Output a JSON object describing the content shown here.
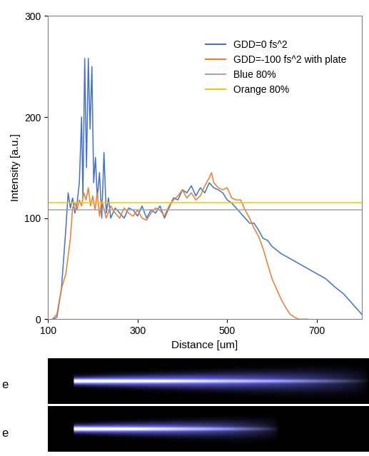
{
  "chart_data": {
    "type": "line",
    "x_label": "Distance [um]",
    "y_label": "Intensity [a.u.]",
    "xlim": [
      100,
      800
    ],
    "xticks": [
      100,
      300,
      500,
      700
    ],
    "ylim": [
      0,
      300
    ],
    "yticks": [
      0,
      100,
      200,
      300
    ],
    "grid": false,
    "legend": "upper right",
    "annotations": [
      "e",
      "e"
    ],
    "series": [
      {
        "name": "GDD=0 fs^2",
        "color": "#4472c4",
        "type": "line",
        "x": [
          110,
          120,
          130,
          140,
          145,
          150,
          155,
          160,
          165,
          170,
          175,
          178,
          182,
          186,
          190,
          194,
          198,
          202,
          206,
          210,
          215,
          220,
          225,
          230,
          235,
          240,
          250,
          260,
          270,
          280,
          290,
          300,
          310,
          320,
          330,
          340,
          350,
          360,
          370,
          380,
          390,
          400,
          410,
          420,
          430,
          440,
          450,
          460,
          470,
          480,
          490,
          500,
          510,
          520,
          530,
          540,
          550,
          560,
          570,
          580,
          590,
          600,
          620,
          640,
          660,
          680,
          700,
          720,
          740,
          760,
          780,
          800
        ],
        "values": [
          0,
          2,
          30,
          90,
          125,
          110,
          120,
          105,
          115,
          135,
          200,
          120,
          258,
          150,
          258,
          188,
          250,
          135,
          160,
          120,
          145,
          100,
          165,
          105,
          120,
          100,
          110,
          105,
          100,
          110,
          108,
          102,
          112,
          100,
          108,
          105,
          112,
          100,
          110,
          120,
          118,
          128,
          125,
          132,
          122,
          130,
          125,
          135,
          130,
          128,
          125,
          118,
          115,
          110,
          105,
          100,
          95,
          95,
          88,
          80,
          78,
          72,
          65,
          60,
          55,
          50,
          45,
          40,
          32,
          25,
          15,
          5
        ]
      },
      {
        "name": "GDD=-100 fs^2 with plate",
        "color": "#ed7d31",
        "type": "line",
        "x": [
          110,
          120,
          130,
          140,
          150,
          155,
          160,
          165,
          170,
          175,
          180,
          185,
          190,
          195,
          200,
          205,
          210,
          215,
          220,
          230,
          240,
          250,
          260,
          270,
          280,
          290,
          300,
          310,
          320,
          330,
          340,
          350,
          360,
          370,
          380,
          390,
          400,
          410,
          420,
          430,
          440,
          450,
          460,
          465,
          470,
          480,
          490,
          500,
          510,
          520,
          530,
          540,
          550,
          560,
          570,
          580,
          590,
          600,
          610,
          620,
          630,
          640,
          650,
          660,
          680
        ],
        "values": [
          0,
          5,
          30,
          45,
          80,
          110,
          115,
          108,
          118,
          112,
          125,
          118,
          130,
          112,
          122,
          108,
          125,
          102,
          118,
          100,
          112,
          105,
          100,
          110,
          105,
          102,
          108,
          100,
          98,
          105,
          110,
          108,
          102,
          112,
          118,
          122,
          128,
          120,
          125,
          118,
          122,
          132,
          140,
          145,
          135,
          130,
          128,
          130,
          120,
          118,
          118,
          108,
          100,
          90,
          82,
          70,
          55,
          40,
          30,
          20,
          12,
          5,
          2,
          0,
          0
        ]
      },
      {
        "name": "Blue 80%",
        "color": "#a5a5a5",
        "type": "line",
        "x": [
          100,
          800
        ],
        "values": [
          108,
          108
        ]
      },
      {
        "name": "Orange 80%",
        "color": "#ffc000",
        "type": "line",
        "x": [
          100,
          800
        ],
        "values": [
          115,
          115
        ]
      }
    ]
  }
}
